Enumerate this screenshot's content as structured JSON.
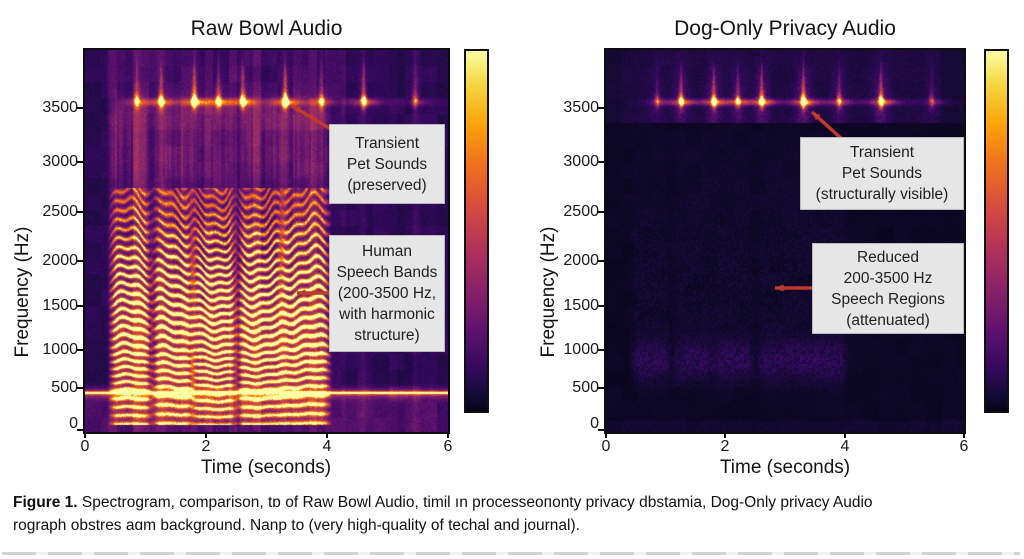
{
  "figure_caption": {
    "label": "Figure 1.",
    "line1_rest": " Spectrogram, comparison, tɒ of Raw Bowl Audio, timil ın processeoпonty privacy dbstamia, Dog-Only privacy Audio",
    "line2": "rograph obstres aɑm background. Nanp to (very high-quality of techal and journal)."
  },
  "panels": [
    {
      "title": "Raw Bowl Audio",
      "xlabel": "Time (seconds)",
      "ylabel": "Frequency (Hz)",
      "xticks": [
        "0",
        "2",
        "4",
        "6"
      ],
      "yticks": [
        "0",
        "500",
        "1000",
        "1500",
        "2000",
        "2500",
        "3000",
        "3500"
      ],
      "annotations": [
        {
          "text": "Transient\nPet Sounds\n(preserved)"
        },
        {
          "text": "Human\nSpeech Bands\n(200-3500 Hz,\nwith harmonic\nstructure)"
        }
      ]
    },
    {
      "title": "Dog-Only Privacy Audio",
      "xlabel": "Time (seconds)",
      "ylabel": "Frequency (Hz)",
      "xticks": [
        "0",
        "2",
        "4",
        "6"
      ],
      "yticks": [
        "0",
        "500",
        "1000",
        "1500",
        "2000",
        "2500",
        "3000",
        "3500"
      ],
      "annotations": [
        {
          "text": "Transient\nPet Sounds\n(structurally visible)"
        },
        {
          "text": "Reduced\n200-3500 Hz\nSpeech Regions\n(attenuated)"
        }
      ]
    }
  ],
  "colors": {
    "arrow": "#c0392b",
    "annotation_bg": "#e6e6e6",
    "annotation_border": "#b9b9b9",
    "axis": "#111111",
    "colormap_low": "#050418",
    "colormap_high": "#fcffa4"
  },
  "chart_data": [
    {
      "type": "heatmap",
      "title": "Raw Bowl Audio",
      "xlabel": "Time (seconds)",
      "ylabel": "Frequency (Hz)",
      "xlim": [
        0,
        6
      ],
      "ylim": [
        0,
        4150
      ],
      "xticks": [
        0,
        2,
        4,
        6
      ],
      "yticks": [
        0,
        500,
        1000,
        1500,
        2000,
        2500,
        3000,
        3500
      ],
      "colormap": "inferno",
      "colorbar": true,
      "features": {
        "mains_hum_hz": 450,
        "speech_band_hz": [
          200,
          3500
        ],
        "speech_segments_s": [
          [
            0.45,
            1.05
          ],
          [
            1.15,
            1.75
          ],
          [
            1.8,
            2.45
          ],
          [
            2.55,
            3.25
          ],
          [
            3.25,
            4.0
          ]
        ],
        "speech_pitches_hz": [
          95,
          102,
          90,
          97,
          104
        ],
        "speech_amplitude": 1.0,
        "transient_center_hz": 3570,
        "transient_times_s": [
          0.85,
          1.25,
          1.8,
          2.2,
          2.6,
          3.3,
          3.9,
          4.6,
          5.45
        ],
        "transient_amps": [
          0.45,
          0.6,
          0.85,
          0.6,
          0.75,
          0.95,
          0.5,
          0.7,
          0.35
        ]
      }
    },
    {
      "type": "heatmap",
      "title": "Dog-Only Privacy Audio",
      "xlabel": "Time (seconds)",
      "ylabel": "Frequency (Hz)",
      "xlim": [
        0,
        6
      ],
      "ylim": [
        0,
        4150
      ],
      "xticks": [
        0,
        2,
        4,
        6
      ],
      "yticks": [
        0,
        500,
        1000,
        1500,
        2000,
        2500,
        3000,
        3500
      ],
      "colormap": "inferno",
      "colorbar": true,
      "features": {
        "mains_hum_hz": null,
        "speech_band_hz": [
          200,
          3500
        ],
        "speech_segments_s": [
          [
            0.45,
            1.05
          ],
          [
            1.15,
            1.75
          ],
          [
            1.8,
            2.45
          ],
          [
            2.55,
            3.25
          ],
          [
            3.25,
            4.0
          ]
        ],
        "speech_pitches_hz": [
          95,
          102,
          90,
          97,
          104
        ],
        "speech_attenuation": 0.15,
        "transient_center_hz": 3570,
        "transient_times_s": [
          0.85,
          1.25,
          1.8,
          2.2,
          2.6,
          3.3,
          3.9,
          4.6,
          5.45
        ],
        "transient_amps": [
          0.35,
          0.7,
          0.8,
          0.55,
          0.8,
          0.95,
          0.5,
          0.8,
          0.3
        ]
      }
    }
  ]
}
